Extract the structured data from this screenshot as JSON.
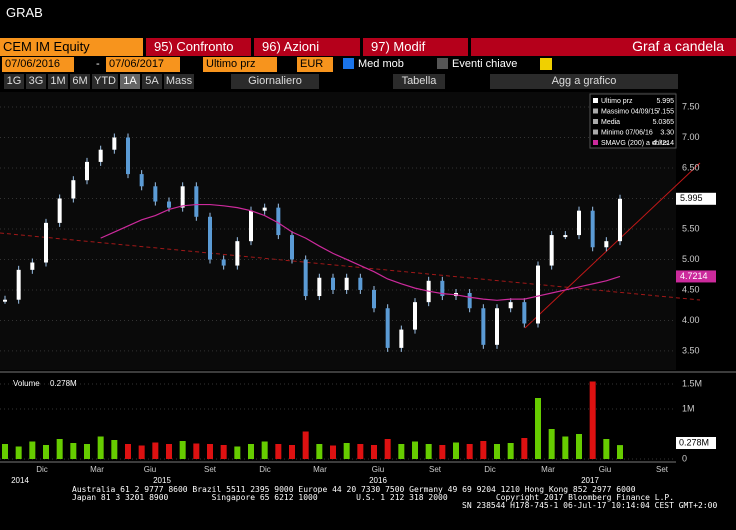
{
  "header": {
    "title": "GRAB"
  },
  "toolbar": {
    "security": "CEM IM Equity",
    "tabs": [
      "95) Confronto",
      "96) Azioni",
      "97) Modif"
    ],
    "view": "Graf a candela",
    "start_date": "07/06/2016",
    "separator": "-",
    "end_date": "07/06/2017",
    "field": "Ultimo prz",
    "currency": "EUR",
    "moving_avg": "Med mob",
    "key_events": "Eventi chiave",
    "periods": [
      "1G",
      "3G",
      "1M",
      "6M",
      "YTD",
      "1A",
      "5A",
      "Mass"
    ],
    "frequency": "Giornaliero",
    "table": "Tabella",
    "add_to_chart": "Agg a grafico"
  },
  "chart_data": {
    "type": "candlestick",
    "legend": [
      {
        "name": "Ultimo prz",
        "value": "5.995"
      },
      {
        "name": "Massimo 04/09/15",
        "value": "7.155"
      },
      {
        "name": "Media",
        "value": "5.0365"
      },
      {
        "name": "Minimo 07/06/16",
        "value": "3.30"
      },
      {
        "name": "SMAVG (200) a chius",
        "value": "4.7214"
      }
    ],
    "series": [
      {
        "name": "Ultimo prz",
        "color": "#5b9bd5",
        "values": [
          4.34,
          4.83,
          4.95,
          5.6,
          6.0,
          6.3,
          6.6,
          6.8,
          7.0,
          6.4,
          6.2,
          5.95,
          5.85,
          6.2,
          5.7,
          5.0,
          4.9,
          5.3,
          5.8,
          5.85,
          5.4,
          5.0,
          4.4,
          4.7,
          4.5,
          4.7,
          4.5,
          4.2,
          3.55,
          3.85,
          4.3,
          4.65,
          4.4,
          4.45,
          4.2,
          3.6,
          4.2,
          4.3,
          3.95,
          4.9,
          5.4,
          5.4,
          5.8,
          5.2,
          5.3,
          5.995
        ]
      },
      {
        "name": "SMAVG (200) a chius",
        "color": "#cc2a9c",
        "values": [
          null,
          null,
          null,
          null,
          null,
          null,
          null,
          5.35,
          5.45,
          5.55,
          5.65,
          5.72,
          5.82,
          5.88,
          5.9,
          5.9,
          5.88,
          5.85,
          5.8,
          5.72,
          5.6,
          5.45,
          5.35,
          5.22,
          5.1,
          5.0,
          4.9,
          4.8,
          4.68,
          4.6,
          4.53,
          4.48,
          4.44,
          4.42,
          4.38,
          4.35,
          4.33,
          4.35,
          4.35,
          4.4,
          4.45,
          4.5,
          4.55,
          4.6,
          4.65,
          4.7214
        ]
      }
    ],
    "ylim": [
      3.22,
      7.73
    ],
    "yticks": [
      {
        "value": 3.5,
        "label": "3.50"
      },
      {
        "value": 4,
        "label": "4.00"
      },
      {
        "value": 4.5,
        "label": "4.50"
      },
      {
        "value": 5,
        "label": "5.00"
      },
      {
        "value": 5.5,
        "label": "5.50"
      },
      {
        "value": 6,
        "label": "6.00"
      },
      {
        "value": 6.5,
        "label": "6.50"
      },
      {
        "value": 7,
        "label": "7.00"
      },
      {
        "value": 7.5,
        "label": "7.50"
      }
    ],
    "volume": {
      "name": "Volume",
      "last_label": "0.278M",
      "values": [
        0.3,
        0.25,
        0.35,
        0.28,
        0.4,
        0.32,
        0.3,
        0.45,
        0.38,
        0.3,
        0.27,
        0.33,
        0.3,
        0.36,
        0.31,
        0.3,
        0.28,
        0.25,
        0.3,
        0.35,
        0.3,
        0.28,
        0.55,
        0.3,
        0.27,
        0.32,
        0.3,
        0.28,
        0.4,
        0.3,
        0.35,
        0.3,
        0.28,
        0.33,
        0.3,
        0.36,
        0.3,
        0.32,
        0.42,
        1.22,
        0.6,
        0.45,
        0.5,
        1.55,
        0.4,
        0.278
      ],
      "ylim": [
        0,
        1.7
      ],
      "yticks": [
        0,
        {
          "value": 1,
          "label": "1M"
        },
        {
          "value": 1.5,
          "label": "1.5M"
        }
      ]
    },
    "months": [
      "Dic",
      "Mar",
      "Giu",
      "Set",
      "Dic",
      "Mar",
      "Giu",
      "Set",
      "Dic",
      "Mar",
      "Giu",
      "Set"
    ],
    "years": [
      "2014",
      "2015",
      "2016",
      "2017"
    ]
  },
  "footer": {
    "lines": [
      "Australia 61 2 9777 8600 Brazil 5511 2395 9000 Europe 44 20 7330 7500 Germany 49 69 9204 1210 Hong Kong 852 2977 6000",
      "Japan 81 3 3201 8900         Singapore 65 6212 1000        U.S. 1 212 318 2000          Copyright 2017 Bloomberg Finance L.P.",
      "SN 238544 H178-745-1 06-Jul-17 10:14:04 CEST GMT+2:00"
    ]
  }
}
